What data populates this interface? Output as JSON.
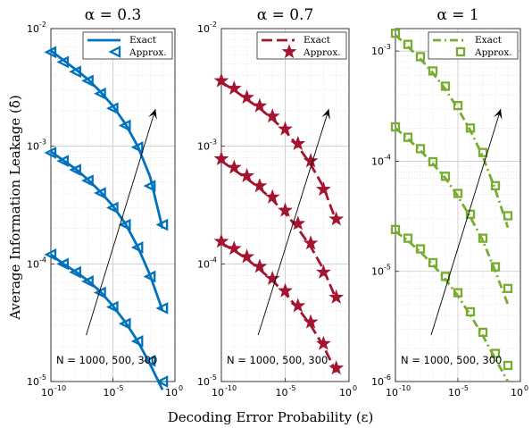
{
  "figure": {
    "xlabel": "Decoding Error Probability (ε)",
    "ylabel": "Average Information Leakage (δ̄)"
  },
  "chart_data": [
    {
      "type": "line",
      "title": "α = 0.3",
      "xscale": "log",
      "yscale": "log",
      "xlim": [
        1e-10,
        1
      ],
      "ylim": [
        1e-05,
        0.01
      ],
      "xticks": [
        "-10",
        "-5",
        "0"
      ],
      "yticks": [
        "-5",
        "-4",
        "-3",
        "-2"
      ],
      "grid": true,
      "legend": {
        "position": "top-right",
        "entries": [
          "Exact",
          "Approx."
        ]
      },
      "color": "#0072BD",
      "marker": "triangle-left",
      "line_style": "solid",
      "annotation": "N = 1000, 500, 300",
      "series": [
        {
          "x": [
            1e-10,
            1e-09,
            1e-08,
            1e-07,
            1e-06,
            1e-05,
            0.0001,
            0.001,
            0.01,
            0.1
          ],
          "exact": [
            0.0065,
            0.0054,
            0.0045,
            0.0037,
            0.0029,
            0.0022,
            0.00155,
            0.001,
            0.00055,
            0.0002
          ],
          "approx": [
            0.0063,
            0.0052,
            0.0043,
            0.0036,
            0.0028,
            0.0021,
            0.0015,
            0.00098,
            0.00046,
            0.000215
          ]
        },
        {
          "x": [
            1e-10,
            1e-09,
            1e-08,
            1e-07,
            1e-06,
            1e-05,
            0.0001,
            0.001,
            0.01,
            0.1
          ],
          "exact": [
            0.0009,
            0.00076,
            0.00064,
            0.00052,
            0.00041,
            0.00031,
            0.00022,
            0.00014,
            8e-05,
            4e-05
          ],
          "approx": [
            0.00088,
            0.00075,
            0.00063,
            0.00051,
            0.0004,
            0.0003,
            0.000215,
            0.000138,
            7.8e-05,
            4.2e-05
          ]
        },
        {
          "x": [
            1e-10,
            1e-09,
            1e-08,
            1e-07,
            1e-06,
            1e-05,
            0.0001,
            0.001,
            0.01,
            0.1
          ],
          "exact": [
            0.00012,
            0.0001,
            8.6e-05,
            7.2e-05,
            5.8e-05,
            4.4e-05,
            3.2e-05,
            2.2e-05,
            1.4e-05,
            8.5e-06
          ],
          "approx": [
            0.00012,
            0.0001,
            8.5e-05,
            7.1e-05,
            5.7e-05,
            4.3e-05,
            3.1e-05,
            2.2e-05,
            1.5e-05,
            1e-05
          ]
        }
      ]
    },
    {
      "type": "line",
      "title": "α = 0.7",
      "xscale": "log",
      "yscale": "log",
      "xlim": [
        1e-10,
        1
      ],
      "ylim": [
        1e-05,
        0.01
      ],
      "xticks": [
        "-10",
        "-5",
        "0"
      ],
      "yticks": [
        "-5",
        "-4",
        "-3",
        "-2"
      ],
      "grid": true,
      "legend": {
        "position": "top-right",
        "entries": [
          "Exact",
          "Approx."
        ]
      },
      "color": "#A2142F",
      "marker": "star",
      "line_style": "dashed",
      "annotation": "N = 1000, 500, 300",
      "series": [
        {
          "x": [
            1e-10,
            1e-09,
            1e-08,
            1e-07,
            1e-06,
            1e-05,
            0.0001,
            0.001,
            0.01,
            0.1
          ],
          "exact": [
            0.0035,
            0.003,
            0.0025,
            0.0021,
            0.0017,
            0.00135,
            0.001,
            0.0007,
            0.00045,
            0.00023
          ],
          "approx": [
            0.0036,
            0.0031,
            0.0026,
            0.0022,
            0.0018,
            0.0014,
            0.00105,
            0.00075,
            0.00043,
            0.00024
          ]
        },
        {
          "x": [
            1e-10,
            1e-09,
            1e-08,
            1e-07,
            1e-06,
            1e-05,
            0.0001,
            0.001,
            0.01,
            0.1
          ],
          "exact": [
            0.00075,
            0.00063,
            0.00053,
            0.00044,
            0.00035,
            0.00027,
            0.0002,
            0.00014,
            9e-05,
            5e-05
          ],
          "approx": [
            0.00078,
            0.00066,
            0.00056,
            0.00046,
            0.00037,
            0.000285,
            0.00022,
            0.00015,
            8.5e-05,
            5.2e-05
          ]
        },
        {
          "x": [
            1e-10,
            1e-09,
            1e-08,
            1e-07,
            1e-06,
            1e-05,
            0.0001,
            0.001,
            0.01,
            0.1
          ],
          "exact": [
            0.00015,
            0.00013,
            0.00011,
            9e-05,
            7.2e-05,
            5.6e-05,
            4.2e-05,
            3e-05,
            2e-05,
            1.2e-05
          ],
          "approx": [
            0.000155,
            0.000135,
            0.000115,
            9.5e-05,
            7.5e-05,
            5.9e-05,
            4.4e-05,
            3.2e-05,
            2.1e-05,
            1.3e-05
          ]
        }
      ]
    },
    {
      "type": "line",
      "title": "α = 1",
      "xscale": "log",
      "yscale": "log",
      "xlim": [
        1e-10,
        1
      ],
      "ylim": [
        1e-06,
        0.0016
      ],
      "xticks": [
        "-10",
        "-5",
        "0"
      ],
      "yticks": [
        "-6",
        "-5",
        "-4",
        "-3"
      ],
      "grid": true,
      "legend": {
        "position": "top-right",
        "entries": [
          "Exact",
          "Approx."
        ]
      },
      "color": "#77AC30",
      "marker": "square",
      "line_style": "dash-dot",
      "annotation": "N = 1000, 500, 300",
      "series": [
        {
          "x": [
            1e-10,
            1e-09,
            1e-08,
            1e-07,
            1e-06,
            1e-05,
            0.0001,
            0.001,
            0.01,
            0.1
          ],
          "exact": [
            0.0014,
            0.0011,
            0.00085,
            0.00063,
            0.00045,
            0.0003,
            0.00019,
            0.00011,
            5.5e-05,
            2.5e-05
          ],
          "approx": [
            0.00145,
            0.00115,
            0.00089,
            0.00066,
            0.00048,
            0.00032,
            0.0002,
            0.00012,
            6e-05,
            3.2e-05
          ]
        },
        {
          "x": [
            1e-10,
            1e-09,
            1e-08,
            1e-07,
            1e-06,
            1e-05,
            0.0001,
            0.001,
            0.01,
            0.1
          ],
          "exact": [
            0.0002,
            0.00016,
            0.000125,
            9.5e-05,
            7e-05,
            4.8e-05,
            3.1e-05,
            1.9e-05,
            1e-05,
            5e-06
          ],
          "approx": [
            0.000205,
            0.000165,
            0.00013,
            9.9e-05,
            7.3e-05,
            5.1e-05,
            3.3e-05,
            2e-05,
            1.1e-05,
            7e-06
          ]
        },
        {
          "x": [
            1e-10,
            1e-09,
            1e-08,
            1e-07,
            1e-06,
            1e-05,
            0.0001,
            0.001,
            0.01,
            0.1
          ],
          "exact": [
            2.3e-05,
            1.9e-05,
            1.5e-05,
            1.15e-05,
            8.5e-06,
            6e-06,
            4e-06,
            2.6e-06,
            1.6e-06,
            1e-06
          ],
          "approx": [
            2.4e-05,
            2e-05,
            1.6e-05,
            1.2e-05,
            9e-06,
            6.4e-06,
            4.3e-06,
            2.8e-06,
            1.8e-06,
            1.4e-06
          ]
        }
      ]
    }
  ]
}
